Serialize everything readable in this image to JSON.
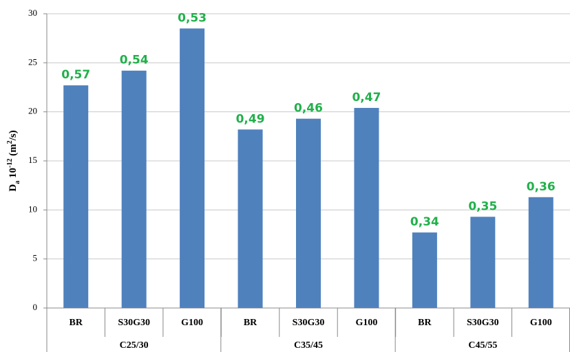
{
  "chart_data": {
    "type": "bar",
    "ylabel": [
      {
        "text": "D"
      },
      {
        "text": "a",
        "shift": "sub"
      },
      {
        "text": " 10"
      },
      {
        "text": "-12",
        "shift": "super"
      },
      {
        "text": " (m"
      },
      {
        "text": "2",
        "shift": "super"
      },
      {
        "text": "/s)"
      }
    ],
    "categories": [
      "BR",
      "S30G30",
      "G100",
      "BR",
      "S30G30",
      "G100",
      "BR",
      "S30G30",
      "G100"
    ],
    "groups": [
      "C25/30",
      "C35/45",
      "C45/55"
    ],
    "values": [
      22.7,
      24.2,
      28.5,
      18.2,
      19.3,
      20.4,
      7.7,
      9.3,
      11.3
    ],
    "annotations": [
      "0,57",
      "0,54",
      "0,53",
      "0,49",
      "0,46",
      "0,47",
      "0,34",
      "0,35",
      "0,36"
    ],
    "color": "#4f81bd",
    "annotation_color": "#22b04b",
    "ylim": [
      0,
      30
    ],
    "yticks": [
      0,
      5,
      10,
      15,
      20,
      25,
      30
    ],
    "grid": true
  }
}
